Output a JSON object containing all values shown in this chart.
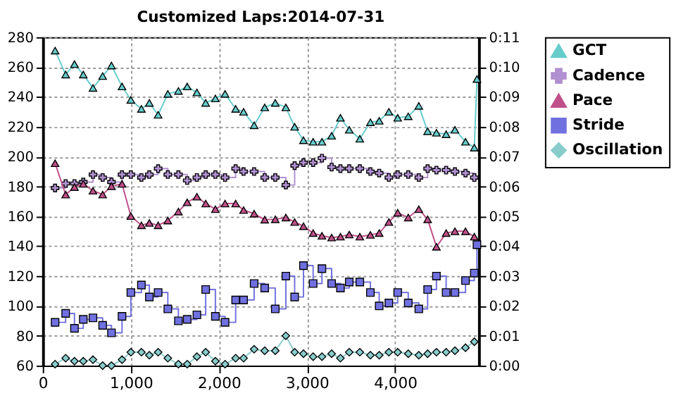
{
  "chart_data": {
    "type": "line",
    "title": "Customized Laps:2014-07-31",
    "xlim": [
      0,
      4950
    ],
    "xticks": [
      0,
      {
        "value": 1000,
        "label": "1,000"
      },
      {
        "value": 2000,
        "label": "2,000"
      },
      {
        "value": 3000,
        "label": "3,000"
      },
      {
        "value": 4000,
        "label": "4,000"
      }
    ],
    "ylim": [
      60,
      280
    ],
    "yticks": [
      60,
      80,
      100,
      120,
      140,
      160,
      180,
      200,
      220,
      240,
      260,
      280
    ],
    "y2lim": [
      0,
      11
    ],
    "y2ticks": [
      {
        "value": 0,
        "label": "0:00"
      },
      {
        "value": 1,
        "label": "0:01"
      },
      {
        "value": 2,
        "label": "0:02"
      },
      {
        "value": 3,
        "label": "0:03"
      },
      {
        "value": 4,
        "label": "0:04"
      },
      {
        "value": 5,
        "label": "0:05"
      },
      {
        "value": 6,
        "label": "0:06"
      },
      {
        "value": 7,
        "label": "0:07"
      },
      {
        "value": 8,
        "label": "0:08"
      },
      {
        "value": 9,
        "label": "0:09"
      },
      {
        "value": 10,
        "label": "0:10"
      },
      {
        "value": 11,
        "label": "0:11"
      }
    ],
    "grid": true,
    "legend": "right",
    "series": [
      {
        "name": "GCT",
        "color": "#66cccc",
        "marker": "triangle",
        "x": [
          140,
          260,
          360,
          460,
          570,
          680,
          780,
          900,
          1000,
          1120,
          1210,
          1310,
          1420,
          1540,
          1640,
          1750,
          1850,
          1960,
          2070,
          2190,
          2280,
          2400,
          2520,
          2640,
          2760,
          2860,
          2960,
          3070,
          3170,
          3280,
          3380,
          3480,
          3600,
          3720,
          3820,
          3930,
          4030,
          4150,
          4270,
          4370,
          4470,
          4580,
          4680,
          4800,
          4900,
          4930
        ],
        "values": [
          271,
          255,
          262,
          255,
          246,
          254,
          261,
          247,
          238,
          232,
          236,
          228,
          242,
          244,
          247,
          243,
          236,
          239,
          242,
          232,
          230,
          221,
          233,
          236,
          233,
          220,
          211,
          210,
          210,
          214,
          226,
          218,
          212,
          223,
          224,
          230,
          226,
          227,
          234,
          217,
          216,
          215,
          218,
          210,
          206,
          252
        ]
      },
      {
        "name": "Cadence",
        "color": "#b090d0",
        "marker": "cross",
        "type": "step",
        "x": [
          140,
          260,
          360,
          460,
          570,
          680,
          780,
          900,
          1000,
          1120,
          1210,
          1310,
          1420,
          1540,
          1640,
          1750,
          1850,
          1960,
          2070,
          2190,
          2280,
          2400,
          2520,
          2640,
          2760,
          2860,
          2960,
          3070,
          3170,
          3280,
          3380,
          3480,
          3600,
          3720,
          3820,
          3930,
          4030,
          4150,
          4270,
          4370,
          4470,
          4580,
          4680,
          4800,
          4900
        ],
        "values": [
          179,
          182,
          182,
          183,
          188,
          186,
          183,
          188,
          188,
          186,
          188,
          192,
          188,
          188,
          184,
          186,
          188,
          188,
          186,
          192,
          190,
          190,
          186,
          186,
          181,
          194,
          196,
          196,
          199,
          193,
          192,
          192,
          192,
          190,
          189,
          186,
          188,
          188,
          186,
          192,
          191,
          191,
          190,
          189,
          186
        ]
      },
      {
        "name": "Pace",
        "color": "#c0508a",
        "marker": "triangle",
        "axis": "y2",
        "x": [
          140,
          260,
          360,
          460,
          570,
          680,
          780,
          900,
          1000,
          1120,
          1210,
          1310,
          1420,
          1540,
          1640,
          1750,
          1850,
          1960,
          2070,
          2190,
          2280,
          2400,
          2520,
          2640,
          2760,
          2860,
          2960,
          3070,
          3170,
          3280,
          3380,
          3480,
          3600,
          3720,
          3820,
          3930,
          4030,
          4150,
          4270,
          4370,
          4470,
          4580,
          4680,
          4800,
          4900
        ],
        "values": [
          6.78,
          5.73,
          5.98,
          6.09,
          5.86,
          5.73,
          6.01,
          6.09,
          5.01,
          4.7,
          4.78,
          4.7,
          4.86,
          5.16,
          5.47,
          5.66,
          5.43,
          5.24,
          5.43,
          5.43,
          5.21,
          5.09,
          4.89,
          4.9,
          4.96,
          4.81,
          4.67,
          4.44,
          4.35,
          4.29,
          4.32,
          4.39,
          4.32,
          4.38,
          4.44,
          4.81,
          5.12,
          4.96,
          5.24,
          4.9,
          3.98,
          4.44,
          4.5,
          4.5,
          4.32
        ]
      },
      {
        "name": "Stride",
        "color": "#7070e0",
        "marker": "square",
        "type": "step",
        "x": [
          140,
          260,
          360,
          460,
          570,
          680,
          780,
          900,
          1000,
          1120,
          1210,
          1310,
          1420,
          1540,
          1640,
          1750,
          1850,
          1960,
          2070,
          2190,
          2280,
          2400,
          2520,
          2640,
          2760,
          2860,
          2960,
          3070,
          3170,
          3280,
          3380,
          3480,
          3600,
          3720,
          3820,
          3930,
          4030,
          4150,
          4270,
          4370,
          4470,
          4580,
          4680,
          4800,
          4900,
          4930
        ],
        "values": [
          89,
          95,
          85,
          91,
          92,
          87,
          82,
          93,
          109,
          114,
          106,
          109,
          98,
          90,
          91,
          94,
          111,
          93,
          89,
          104,
          104,
          115,
          112,
          98,
          120,
          106,
          127,
          115,
          125,
          115,
          112,
          116,
          116,
          109,
          100,
          102,
          109,
          102,
          98,
          111,
          120,
          109,
          109,
          117,
          122,
          141
        ]
      },
      {
        "name": "Oscillation",
        "color": "#88cccc",
        "marker": "diamond",
        "x": [
          140,
          260,
          360,
          460,
          570,
          680,
          780,
          900,
          1000,
          1120,
          1210,
          1310,
          1420,
          1540,
          1640,
          1750,
          1850,
          1960,
          2070,
          2190,
          2280,
          2400,
          2520,
          2640,
          2760,
          2860,
          2960,
          3070,
          3170,
          3280,
          3380,
          3480,
          3600,
          3720,
          3820,
          3930,
          4030,
          4150,
          4270,
          4370,
          4470,
          4580,
          4680,
          4800,
          4900
        ],
        "values": [
          61,
          65,
          63,
          63,
          64,
          60,
          60,
          64,
          69,
          69,
          67,
          69,
          65,
          61,
          61,
          66,
          69,
          63,
          61,
          65,
          65,
          71,
          70,
          70,
          80,
          69,
          68,
          66,
          66,
          68,
          65,
          69,
          69,
          67,
          67,
          69,
          69,
          68,
          67,
          68,
          69,
          69,
          70,
          72,
          76
        ]
      }
    ]
  }
}
